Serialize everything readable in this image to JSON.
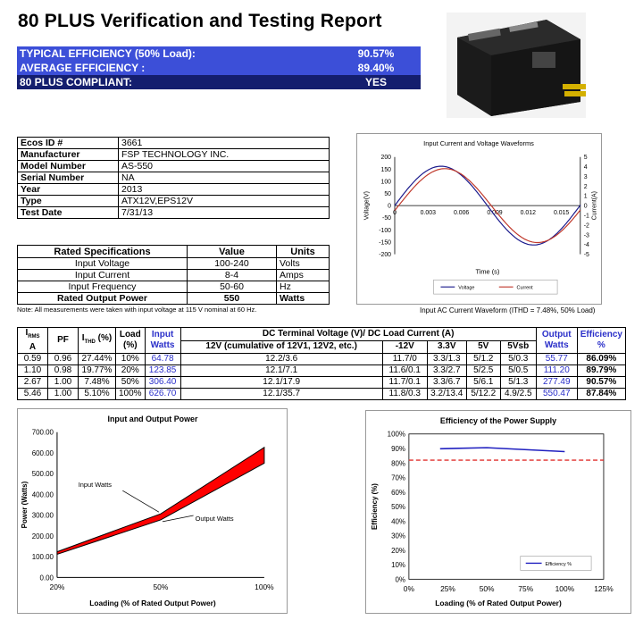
{
  "title": "80 PLUS Verification and Testing Report",
  "summary": [
    {
      "label": "TYPICAL EFFICIENCY (50% Load):",
      "value": "90.57%"
    },
    {
      "label": "AVERAGE EFFICIENCY :",
      "value": "89.40%"
    },
    {
      "label": "80 PLUS COMPLIANT:",
      "value": "YES"
    }
  ],
  "info": [
    {
      "k": "Ecos ID #",
      "v": "3661"
    },
    {
      "k": "Manufacturer",
      "v": "FSP TECHNOLOGY INC."
    },
    {
      "k": "Model Number",
      "v": "AS-550"
    },
    {
      "k": "Serial Number",
      "v": "NA"
    },
    {
      "k": "Year",
      "v": "2013"
    },
    {
      "k": "Type",
      "v": "ATX12V,EPS12V"
    },
    {
      "k": "Test Date",
      "v": "7/31/13"
    }
  ],
  "rated": {
    "headers": [
      "Rated Specifications",
      "Value",
      "Units"
    ],
    "rows": [
      [
        "Input Voltage",
        "100-240",
        "Volts"
      ],
      [
        "Input Current",
        "8-4",
        "Amps"
      ],
      [
        "Input Frequency",
        "50-60",
        "Hz"
      ],
      [
        "Rated Output Power",
        "550",
        "Watts"
      ]
    ]
  },
  "note": "Note: All measurements were taken with input voltage at 115 V nominal at 60 Hz.",
  "wave_caption": "Input AC Current Waveform (ITHD = 7.48%, 50% Load)",
  "measurements": {
    "h_irms_top": "I",
    "h_irms_sub": "RMS",
    "h_irms_unit": "A",
    "h_pf": "PF",
    "h_ithd_top": "I",
    "h_ithd_sub": "THD",
    "h_ithd_unit": "(%)",
    "h_load": "Load",
    "h_load_unit": "(%)",
    "h_input": "Input",
    "h_input_unit": "Watts",
    "h_dc": "DC Terminal Voltage (V)/ DC Load Current (A)",
    "h_12v": "12V (cumulative of 12V1, 12V2, etc.)",
    "h_m12": "-12V",
    "h_33": "3.3V",
    "h_5": "5V",
    "h_5sb": "5Vsb",
    "h_out": "Output",
    "h_out_unit": "Watts",
    "h_eff": "Efficiency",
    "h_eff_unit": "%",
    "rows": [
      [
        "0.59",
        "0.96",
        "27.44%",
        "10%",
        "64.78",
        "12.2/3.6",
        "11.7/0",
        "3.3/1.3",
        "5/1.2",
        "5/0.3",
        "55.77",
        "86.09%"
      ],
      [
        "1.10",
        "0.98",
        "19.77%",
        "20%",
        "123.85",
        "12.1/7.1",
        "11.6/0.1",
        "3.3/2.7",
        "5/2.5",
        "5/0.5",
        "111.20",
        "89.79%"
      ],
      [
        "2.67",
        "1.00",
        "7.48%",
        "50%",
        "306.40",
        "12.1/17.9",
        "11.7/0.1",
        "3.3/6.7",
        "5/6.1",
        "5/1.3",
        "277.49",
        "90.57%"
      ],
      [
        "5.46",
        "1.00",
        "5.10%",
        "100%",
        "626.70",
        "12.1/35.7",
        "11.8/0.3",
        "3.2/13.4",
        "5/12.2",
        "4.9/2.5",
        "550.47",
        "87.84%"
      ]
    ]
  },
  "chart_data": [
    {
      "type": "line",
      "title": "Input Current and Voltage Waveforms",
      "xlabel": "Time (s)",
      "ylabel": "Voltage(V)",
      "y2label": "Current(A)",
      "x_ticks": [
        "0",
        "0.003",
        "0.006",
        "0.009",
        "0.012",
        "0.015"
      ],
      "y_ticks": [
        "200",
        "150",
        "100",
        "50",
        "0",
        "-50",
        "-100",
        "-150",
        "-200"
      ],
      "y2_ticks": [
        "5",
        "4",
        "3",
        "2",
        "1",
        "0",
        "-1",
        "-2",
        "-3",
        "-4",
        "-5"
      ],
      "xlim": [
        0,
        0.0167
      ],
      "ylim": [
        -200,
        200
      ],
      "y2lim": [
        -5,
        5
      ],
      "series": [
        {
          "name": "Voltage",
          "color": "#1a1a8c",
          "amplitude": 162,
          "axis": "left"
        },
        {
          "name": "Current",
          "color": "#c0392b",
          "amplitude": 3.8,
          "axis": "right"
        }
      ],
      "legend": "bottom"
    },
    {
      "type": "area",
      "title": "Input and Output Power",
      "xlabel": "Loading (% of Rated Output Power)",
      "ylabel": "Power (Watts)",
      "categories": [
        "20%",
        "50%",
        "100%"
      ],
      "y_ticks": [
        "700.00",
        "600.00",
        "500.00",
        "400.00",
        "300.00",
        "200.00",
        "100.00",
        "0.00"
      ],
      "ylim": [
        0,
        700
      ],
      "series": [
        {
          "name": "Input Watts",
          "values": [
            123.85,
            306.4,
            626.7
          ]
        },
        {
          "name": "Output Watts",
          "values": [
            111.2,
            277.49,
            550.47
          ]
        }
      ],
      "fill_color": "#ff0000"
    },
    {
      "type": "line",
      "title": "Efficiency of the Power Supply",
      "xlabel": "Loading (% of Rated Output Power)",
      "ylabel": "Efficiency (%)",
      "x_ticks": [
        "0%",
        "25%",
        "50%",
        "75%",
        "100%",
        "125%"
      ],
      "y_ticks": [
        "100%",
        "90%",
        "80%",
        "70%",
        "60%",
        "50%",
        "40%",
        "30%",
        "20%",
        "10%",
        "0%"
      ],
      "xlim": [
        0,
        125
      ],
      "ylim": [
        0,
        100
      ],
      "series": [
        {
          "name": "Efficiency %",
          "x": [
            20,
            50,
            100
          ],
          "y": [
            89.79,
            90.57,
            87.84
          ],
          "color": "#2020c0"
        }
      ],
      "threshold": 82,
      "threshold_color": "#e0302f",
      "legend": "bottom-right"
    }
  ]
}
